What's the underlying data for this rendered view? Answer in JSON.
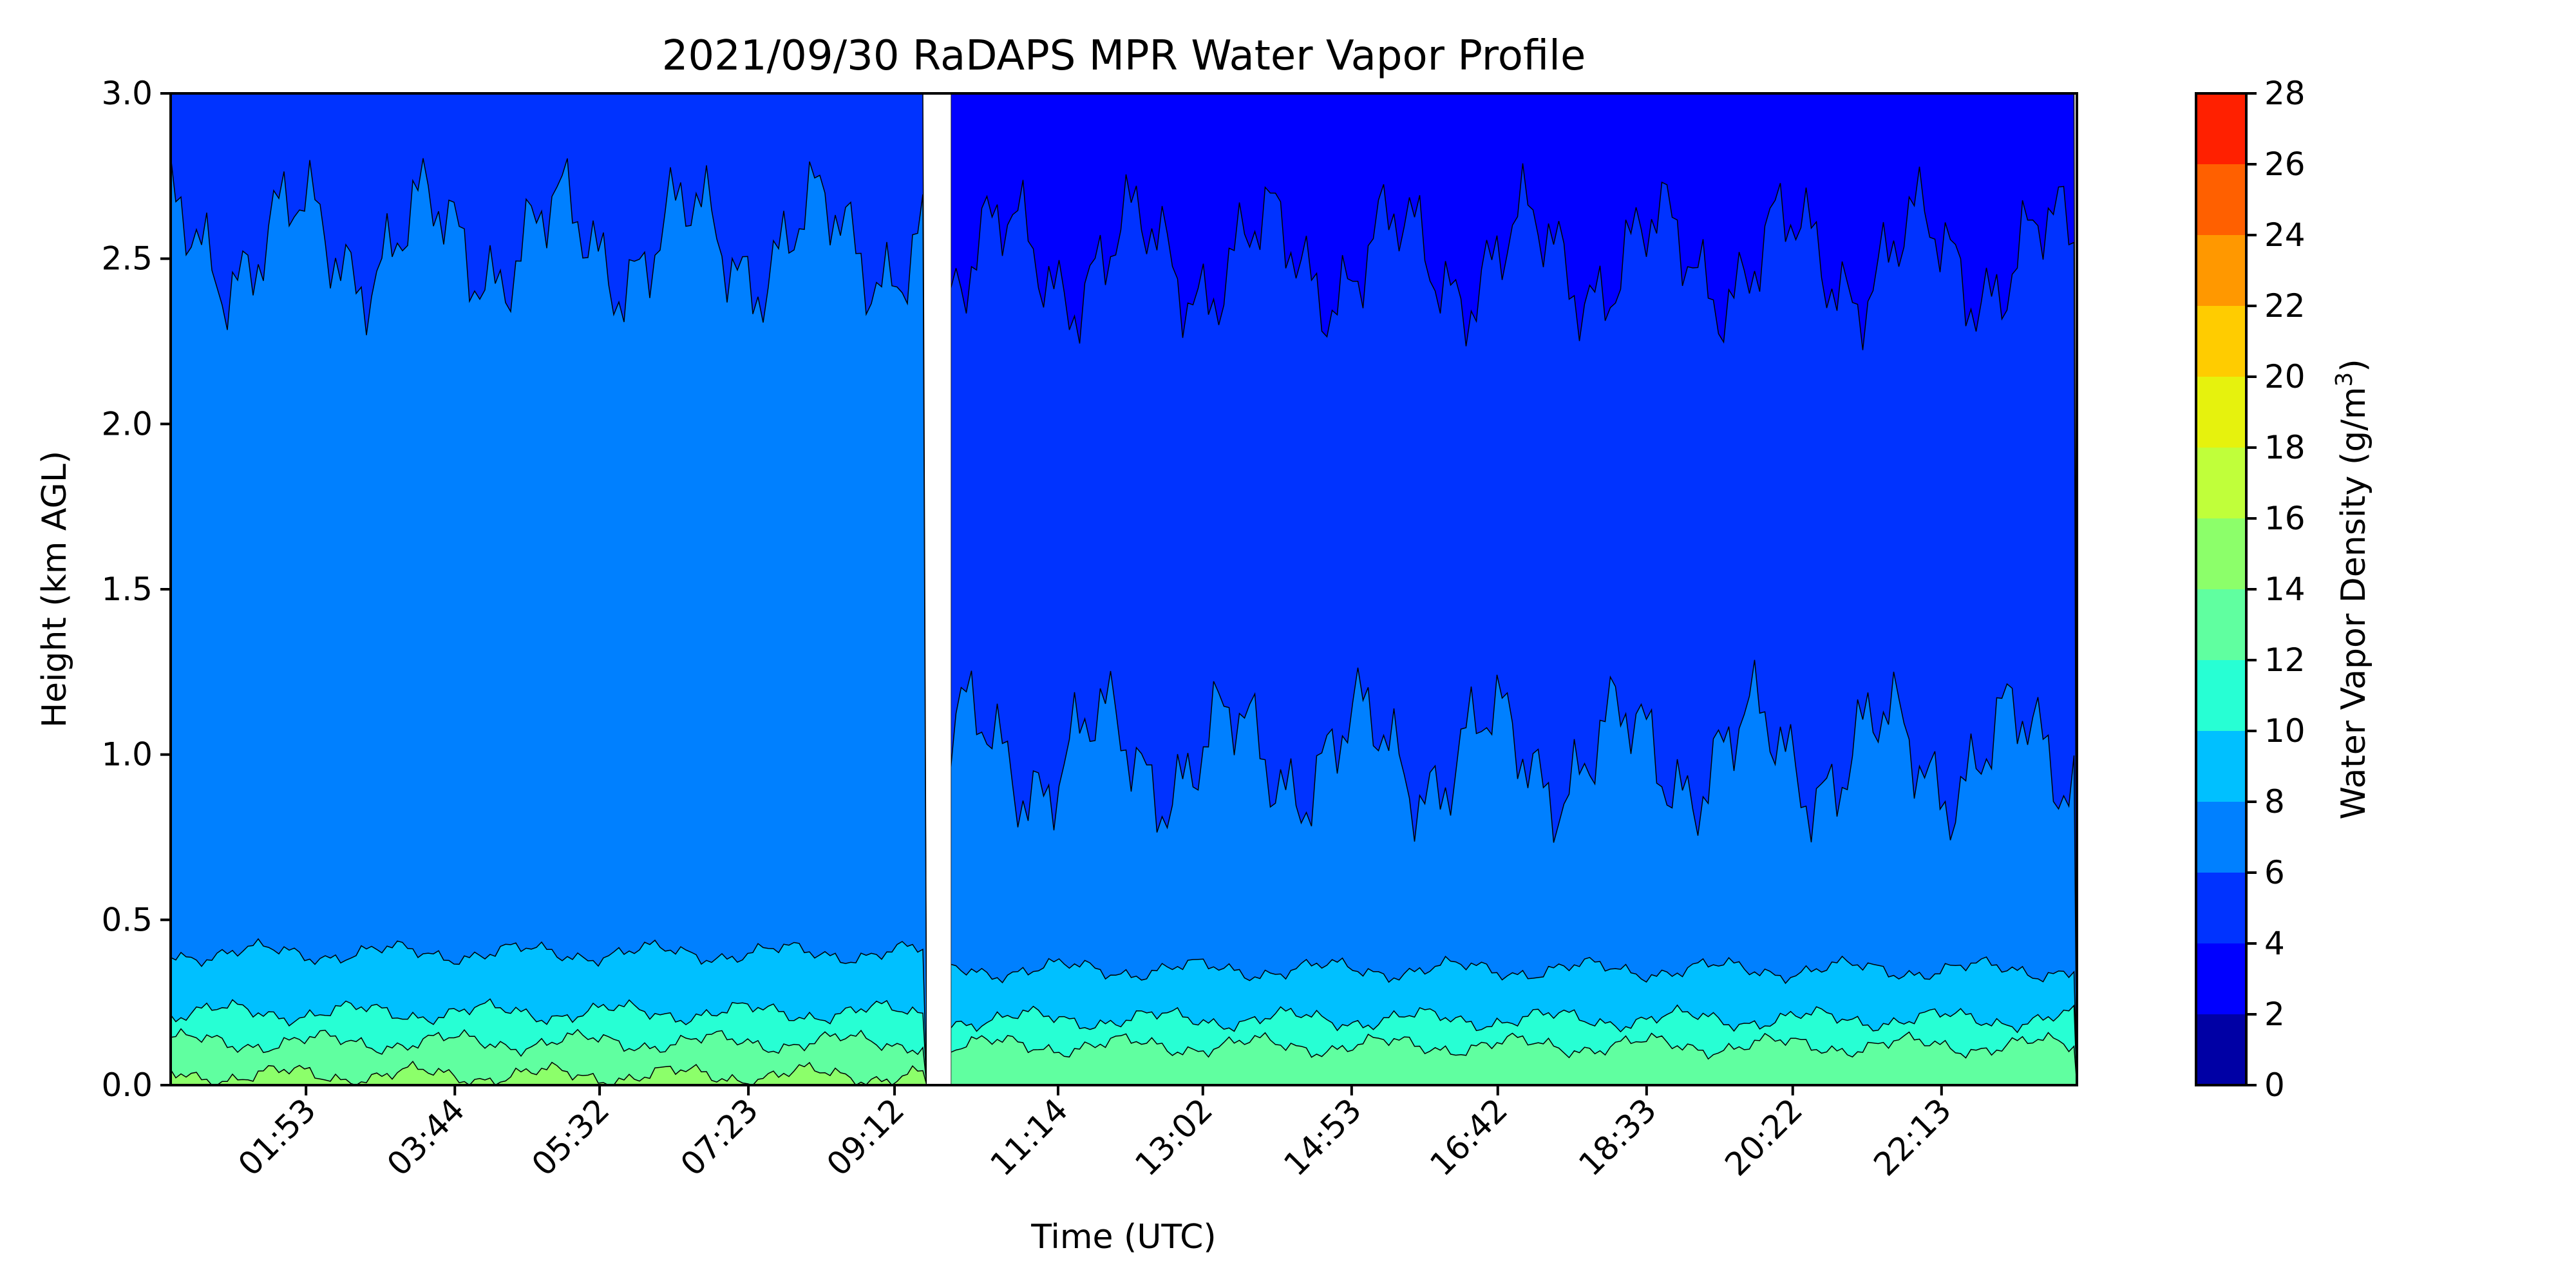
{
  "chart_data": {
    "type": "filled-contour",
    "title": "2021/09/30 RaDAPS MPR Water Vapor Profile",
    "xlabel": "Time (UTC)",
    "ylabel": "Height (km AGL)",
    "x_ticks": [
      "01:53",
      "03:44",
      "05:32",
      "07:23",
      "09:12",
      "11:14",
      "13:02",
      "14:53",
      "16:42",
      "18:33",
      "20:22",
      "22:13"
    ],
    "x_tick_hours": [
      1.883,
      3.733,
      5.533,
      7.383,
      9.2,
      11.233,
      13.033,
      14.883,
      16.7,
      18.55,
      20.367,
      22.217
    ],
    "xlim": [
      0.2,
      23.9
    ],
    "ylim": [
      0.0,
      3.0
    ],
    "y_ticks": [
      0.0,
      0.5,
      1.0,
      1.5,
      2.0,
      2.5,
      3.0
    ],
    "data_gap": [
      9.6,
      9.9
    ],
    "colorbar": {
      "label": "Water Vapor Density (g/m",
      "label_superscript": "3",
      "label_close": ")",
      "levels": [
        0,
        2,
        4,
        6,
        8,
        10,
        12,
        14,
        16,
        18,
        20,
        22,
        24,
        26,
        28
      ],
      "colors": [
        "#0000a5",
        "#0000ff",
        "#0033ff",
        "#0080ff",
        "#00c0ff",
        "#27ffd4",
        "#60ffa0",
        "#8cff6a",
        "#c0ff3a",
        "#e6f20d",
        "#ffcc00",
        "#ff9800",
        "#ff6000",
        "#ff2000",
        "#b00000"
      ]
    },
    "bands_first_half": [
      {
        "level_index": 7,
        "top_km": 0.03
      },
      {
        "level_index": 6,
        "top_km": 0.13
      },
      {
        "level_index": 5,
        "top_km": 0.22
      },
      {
        "level_index": 4,
        "top_km": 0.4
      },
      {
        "level_index": 3,
        "top_km": 2.55
      },
      {
        "level_index": 2,
        "top_km": 3.0
      }
    ],
    "bands_second_half": [
      {
        "level_index": 6,
        "top_km": 0.12
      },
      {
        "level_index": 5,
        "top_km": 0.2
      },
      {
        "level_index": 4,
        "top_km": 0.35
      },
      {
        "level_index": 3,
        "top_km": 1.0
      },
      {
        "level_index": 2,
        "top_km": 2.5
      },
      {
        "level_index": 1,
        "top_km": 3.0
      }
    ]
  }
}
